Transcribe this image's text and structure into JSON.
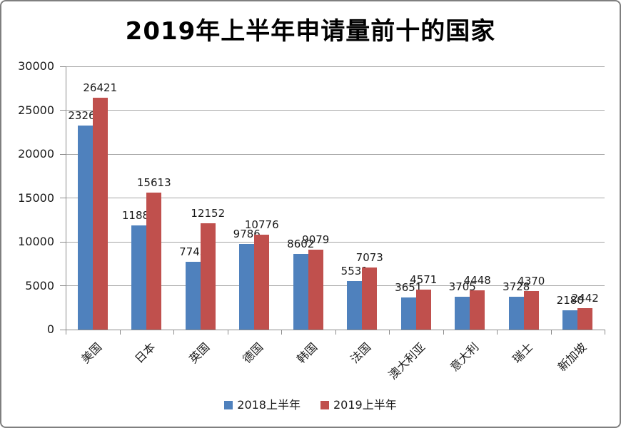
{
  "frame": {
    "background": "#ffffff",
    "border_color": "#7f7f7f"
  },
  "chart_data": {
    "type": "bar",
    "title": "2019年上半年申请量前十的国家",
    "categories": [
      "美国",
      "日本",
      "英国",
      "德国",
      "韩国",
      "法国",
      "澳大利亚",
      "意大利",
      "瑞士",
      "新加坡"
    ],
    "series": [
      {
        "name": "2018上半年",
        "color": "#4f81bd",
        "values": [
          23263,
          11885,
          7743,
          9786,
          8602,
          5531,
          3651,
          3705,
          3728,
          2180
        ]
      },
      {
        "name": "2019上半年",
        "color": "#c0504d",
        "values": [
          26421,
          15613,
          12152,
          10776,
          9079,
          7073,
          4571,
          4448,
          4370,
          2442
        ]
      }
    ],
    "ylim": [
      0,
      30000
    ],
    "ytick_interval": 5000,
    "yticks": [
      "0",
      "5000",
      "10000",
      "15000",
      "20000",
      "25000",
      "30000"
    ],
    "grid": true,
    "data_labels": true,
    "legend_position": "bottom",
    "xlabel": "",
    "ylabel": ""
  }
}
